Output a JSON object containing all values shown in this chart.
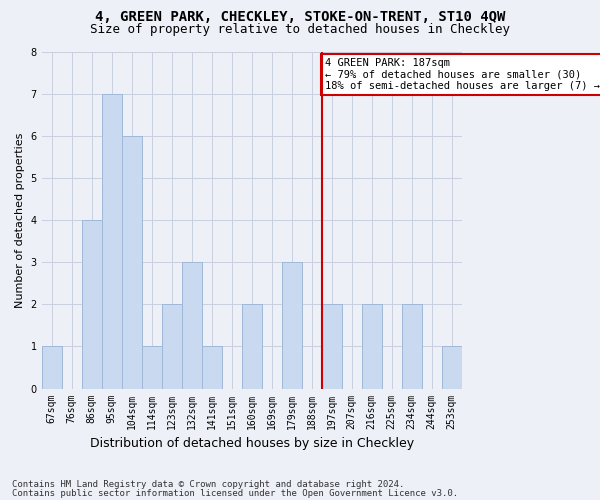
{
  "title": "4, GREEN PARK, CHECKLEY, STOKE-ON-TRENT, ST10 4QW",
  "subtitle": "Size of property relative to detached houses in Checkley",
  "xlabel": "Distribution of detached houses by size in Checkley",
  "ylabel": "Number of detached properties",
  "bar_labels": [
    "67sqm",
    "76sqm",
    "86sqm",
    "95sqm",
    "104sqm",
    "114sqm",
    "123sqm",
    "132sqm",
    "141sqm",
    "151sqm",
    "160sqm",
    "169sqm",
    "179sqm",
    "188sqm",
    "197sqm",
    "207sqm",
    "216sqm",
    "225sqm",
    "234sqm",
    "244sqm",
    "253sqm"
  ],
  "bar_values": [
    1,
    0,
    4,
    7,
    6,
    1,
    2,
    3,
    1,
    0,
    2,
    0,
    3,
    0,
    2,
    0,
    2,
    0,
    2,
    0,
    1
  ],
  "bar_color": "#c9d9f0",
  "bar_edgecolor": "#a0b8d8",
  "annotation_text": "4 GREEN PARK: 187sqm\n← 79% of detached houses are smaller (30)\n18% of semi-detached houses are larger (7) →",
  "annotation_box_color": "#ffffff",
  "annotation_box_edgecolor": "#cc0000",
  "red_line_x": 13.5,
  "ylim": [
    0,
    8
  ],
  "yticks": [
    0,
    1,
    2,
    3,
    4,
    5,
    6,
    7,
    8
  ],
  "grid_color": "#c8d0e0",
  "background_color": "#eef0f8",
  "footer1": "Contains HM Land Registry data © Crown copyright and database right 2024.",
  "footer2": "Contains public sector information licensed under the Open Government Licence v3.0.",
  "title_fontsize": 10,
  "subtitle_fontsize": 9,
  "xlabel_fontsize": 9,
  "ylabel_fontsize": 8,
  "tick_fontsize": 7,
  "annotation_fontsize": 7.5,
  "footer_fontsize": 6.5
}
